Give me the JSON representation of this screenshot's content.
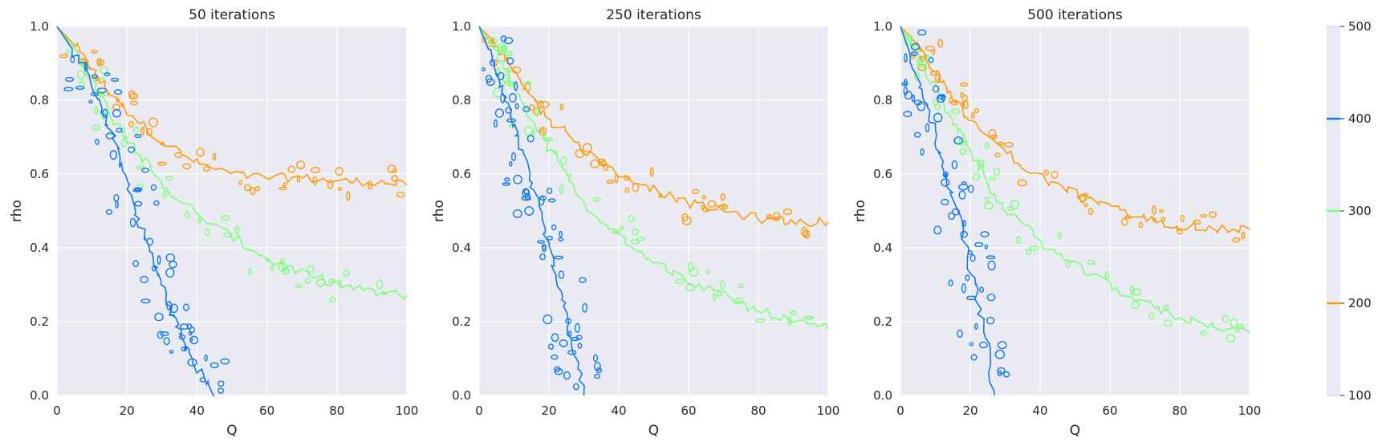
{
  "colors": {
    "background": "#eaeaf2",
    "grid": "#ffffff",
    "level_100": "#e7dff0",
    "level_200": "#ff9a0e",
    "level_300": "#7cff7a",
    "level_400": "#1477f0",
    "level_500": "#dfe3f3"
  },
  "chart_data": [
    {
      "type": "contour",
      "title": "50 iterations",
      "xlabel": "Q",
      "ylabel": "rho",
      "xlim": [
        0,
        100
      ],
      "ylim": [
        0,
        1
      ],
      "xticks": [
        "0",
        "20",
        "40",
        "60",
        "80",
        "100"
      ],
      "yticks": [
        "0.0",
        "0.2",
        "0.4",
        "0.6",
        "0.8",
        "1.0"
      ],
      "grid": true,
      "series": [
        {
          "level": 200,
          "color": "#ff9a0e",
          "x": [
            0,
            5,
            10,
            15,
            20,
            30,
            40,
            50,
            60,
            70,
            80,
            90,
            100
          ],
          "y": [
            1.0,
            0.95,
            0.88,
            0.82,
            0.77,
            0.69,
            0.63,
            0.6,
            0.59,
            0.59,
            0.58,
            0.58,
            0.57
          ]
        },
        {
          "level": 300,
          "color": "#7cff7a",
          "x": [
            0,
            5,
            10,
            15,
            20,
            25,
            30,
            40,
            50,
            60,
            70,
            80,
            90,
            100
          ],
          "y": [
            1.0,
            0.94,
            0.86,
            0.76,
            0.7,
            0.64,
            0.57,
            0.49,
            0.43,
            0.37,
            0.33,
            0.3,
            0.28,
            0.27
          ]
        },
        {
          "level": 400,
          "color": "#1477f0",
          "x": [
            0,
            5,
            10,
            13,
            17,
            20,
            23,
            27,
            30,
            33,
            36,
            40,
            45
          ],
          "y": [
            1.0,
            0.93,
            0.84,
            0.76,
            0.68,
            0.58,
            0.48,
            0.38,
            0.3,
            0.22,
            0.15,
            0.08,
            0.0
          ]
        }
      ]
    },
    {
      "type": "contour",
      "title": "250 iterations",
      "xlabel": "Q",
      "ylabel": "rho",
      "xlim": [
        0,
        100
      ],
      "ylim": [
        0,
        1
      ],
      "xticks": [
        "0",
        "20",
        "40",
        "60",
        "80",
        "100"
      ],
      "yticks": [
        "0.0",
        "0.2",
        "0.4",
        "0.6",
        "0.8",
        "1.0"
      ],
      "grid": true,
      "series": [
        {
          "level": 200,
          "color": "#ff9a0e",
          "x": [
            0,
            5,
            10,
            15,
            20,
            30,
            40,
            50,
            60,
            70,
            80,
            90,
            100
          ],
          "y": [
            1.0,
            0.95,
            0.88,
            0.81,
            0.75,
            0.67,
            0.6,
            0.56,
            0.52,
            0.5,
            0.48,
            0.47,
            0.47
          ]
        },
        {
          "level": 300,
          "color": "#7cff7a",
          "x": [
            0,
            5,
            10,
            15,
            20,
            25,
            30,
            40,
            50,
            60,
            70,
            80,
            90,
            100
          ],
          "y": [
            1.0,
            0.93,
            0.84,
            0.75,
            0.67,
            0.6,
            0.52,
            0.44,
            0.36,
            0.31,
            0.27,
            0.23,
            0.2,
            0.18
          ]
        },
        {
          "level": 400,
          "color": "#1477f0",
          "x": [
            0,
            3,
            6,
            9,
            12,
            15,
            18,
            21,
            24,
            27,
            30
          ],
          "y": [
            1.0,
            0.93,
            0.85,
            0.76,
            0.67,
            0.57,
            0.47,
            0.36,
            0.25,
            0.13,
            0.0
          ]
        }
      ]
    },
    {
      "type": "contour",
      "title": "500 iterations",
      "xlabel": "Q",
      "ylabel": "rho",
      "xlim": [
        0,
        100
      ],
      "ylim": [
        0,
        1
      ],
      "xticks": [
        "0",
        "20",
        "40",
        "60",
        "80",
        "100"
      ],
      "yticks": [
        "0.0",
        "0.2",
        "0.4",
        "0.6",
        "0.8",
        "1.0"
      ],
      "grid": true,
      "series": [
        {
          "level": 200,
          "color": "#ff9a0e",
          "x": [
            0,
            5,
            10,
            15,
            20,
            30,
            40,
            50,
            60,
            70,
            80,
            90,
            100
          ],
          "y": [
            1.0,
            0.95,
            0.88,
            0.81,
            0.74,
            0.66,
            0.59,
            0.55,
            0.51,
            0.48,
            0.46,
            0.45,
            0.45
          ]
        },
        {
          "level": 300,
          "color": "#7cff7a",
          "x": [
            0,
            5,
            10,
            15,
            20,
            25,
            30,
            40,
            50,
            60,
            70,
            80,
            90,
            100
          ],
          "y": [
            1.0,
            0.92,
            0.83,
            0.74,
            0.66,
            0.58,
            0.5,
            0.42,
            0.35,
            0.3,
            0.25,
            0.21,
            0.19,
            0.17
          ]
        },
        {
          "level": 400,
          "color": "#1477f0",
          "x": [
            0,
            3,
            6,
            9,
            12,
            15,
            18,
            21,
            24,
            27
          ],
          "y": [
            1.0,
            0.92,
            0.83,
            0.74,
            0.64,
            0.54,
            0.43,
            0.31,
            0.18,
            0.0
          ]
        }
      ]
    }
  ],
  "colorbar": {
    "levels": [
      100,
      200,
      300,
      400,
      500
    ],
    "labels": [
      "100",
      "200",
      "300",
      "400",
      "500"
    ],
    "range": [
      100,
      500
    ]
  }
}
